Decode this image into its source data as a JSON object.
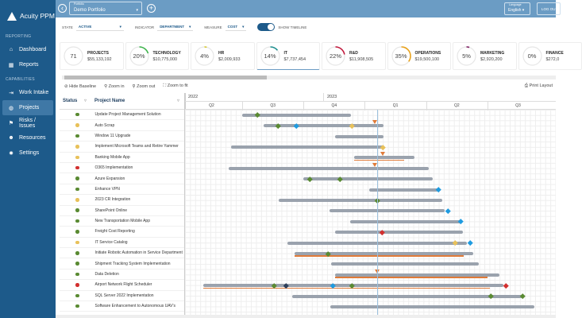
{
  "app": {
    "name": "Acuity PPM"
  },
  "sidebar": {
    "sections": [
      {
        "label": "REPORTING",
        "items": [
          {
            "label": "Dashboard",
            "icon": "home-icon"
          },
          {
            "label": "Reports",
            "icon": "grid-icon"
          }
        ]
      },
      {
        "label": "CAPABILITIES",
        "items": [
          {
            "label": "Work Intake",
            "icon": "arrow-in-icon"
          },
          {
            "label": "Projects",
            "icon": "projects-icon",
            "active": true
          },
          {
            "label": "Risks / Issues",
            "icon": "risk-icon"
          },
          {
            "label": "Resources",
            "icon": "people-icon"
          },
          {
            "label": "Settings",
            "icon": "gear-icon"
          }
        ]
      }
    ]
  },
  "topbar": {
    "portfolio_label": "Portfolio",
    "portfolio_value": "Demo Portfolio",
    "language_label": "Language",
    "language_value": "English",
    "logout": "LOG OU"
  },
  "filters": {
    "state_label": "STATE",
    "state_value": "ACTIVE",
    "indicator_label": "INDICATOR",
    "indicator_value": "DEPARTMENT",
    "measure_label": "MEASURE",
    "measure_value": "COST",
    "timeline_label": "SHOW TIMELINE",
    "timeline_on": true
  },
  "kpis": [
    {
      "title": "PROJECTS",
      "value": "$55,133,192",
      "center": "71",
      "percent": 0,
      "color": "#cccccc"
    },
    {
      "title": "TECHNOLOGY",
      "value": "$10,775,000",
      "center": "20%",
      "percent": 20,
      "color": "#3cb34a"
    },
    {
      "title": "HR",
      "value": "$2,009,933",
      "center": "4%",
      "percent": 4,
      "color": "#d4c62a"
    },
    {
      "title": "IT",
      "value": "$7,737,454",
      "center": "14%",
      "percent": 14,
      "color": "#1f8f8f",
      "selected": true
    },
    {
      "title": "R&D",
      "value": "$11,908,505",
      "center": "22%",
      "percent": 22,
      "color": "#c0163a"
    },
    {
      "title": "OPERATIONS",
      "value": "$19,500,100",
      "center": "35%",
      "percent": 35,
      "color": "#e8a21c"
    },
    {
      "title": "MARKETING",
      "value": "$2,920,200",
      "center": "5%",
      "percent": 5,
      "color": "#7a1a5e"
    },
    {
      "title": "FINANCE",
      "value": "$272,0",
      "center": "0%",
      "percent": 0,
      "color": "#cccccc"
    }
  ],
  "toolbar": {
    "hide_baseline": "Hide Baseline",
    "zoom_in": "Zoom in",
    "zoom_out": "Zoom out",
    "zoom_fit": "Zoom to fit",
    "print": "Print Layout"
  },
  "table": {
    "col_status": "Status",
    "col_name": "Project Name"
  },
  "status_colors": {
    "green": "#5a8a32",
    "yellow": "#e8c15a",
    "red": "#d2302f"
  },
  "milestone_colors": {
    "green": "#5a8a32",
    "blue": "#1e9be0",
    "yellow": "#e8c15a",
    "red": "#d2302f",
    "navy": "#2c3e5a"
  },
  "timeline": {
    "years": [
      "2022",
      "2023"
    ],
    "quarters": [
      "Q2",
      "Q3",
      "Q4",
      "Q1",
      "Q2",
      "Q3"
    ],
    "today": "2023-01-20"
  },
  "projects": [
    {
      "name": "Update Project Management Solution",
      "status": "green",
      "start": "2022-07-01",
      "end": "2022-12-12",
      "milestones": [
        [
          "2022-07-24",
          "green"
        ]
      ]
    },
    {
      "name": "Auto Scrap",
      "status": "yellow",
      "start": "2022-08-02",
      "end": "2023-01-30",
      "milestones": [
        [
          "2022-08-24",
          "green"
        ],
        [
          "2022-09-21",
          "blue"
        ],
        [
          "2022-12-13",
          "yellow"
        ]
      ],
      "markers": [
        "2023-01-17"
      ]
    },
    {
      "name": "Window 11 Upgrade",
      "status": "green",
      "start": "2022-11-18",
      "end": "2023-01-30"
    },
    {
      "name": "Implement Microsoft Teams and Retire Yammer",
      "status": "yellow",
      "start": "2022-06-14",
      "end": "2023-01-30",
      "milestones": [
        [
          "2023-01-29",
          "yellow"
        ]
      ]
    },
    {
      "name": "Banking Mobile App",
      "status": "yellow",
      "start": "2022-12-16",
      "end": "2023-03-17",
      "baseline": [
        "2022-12-16",
        "2023-03-02"
      ],
      "markers": [
        "2023-01-28"
      ]
    },
    {
      "name": "O365 Implementation",
      "status": "red",
      "start": "2022-06-11",
      "end": "2023-04-08",
      "markers": [
        "2023-01-17"
      ]
    },
    {
      "name": "Azure Expansion",
      "status": "green",
      "start": "2022-10-01",
      "end": "2023-04-14",
      "milestones": [
        [
          "2022-10-11",
          "green"
        ],
        [
          "2022-11-25",
          "green"
        ]
      ]
    },
    {
      "name": "Enhance VPN",
      "status": "green",
      "start": "2023-01-08",
      "end": "2023-04-22",
      "milestones": [
        [
          "2023-04-22",
          "blue"
        ]
      ]
    },
    {
      "name": "2023 CR Integration",
      "status": "yellow",
      "start": "2022-08-25",
      "end": "2023-04-28",
      "milestones": [
        [
          "2023-01-20",
          "green"
        ]
      ]
    },
    {
      "name": "SharePoint Online",
      "status": "green",
      "start": "2022-11-09",
      "end": "2023-05-02",
      "milestones": [
        [
          "2023-05-07",
          "blue"
        ]
      ]
    },
    {
      "name": "New Transportation Mobile App",
      "status": "green",
      "start": "2022-12-11",
      "end": "2023-05-26",
      "milestones": [
        [
          "2023-05-26",
          "blue"
        ]
      ]
    },
    {
      "name": "Freight Cost Reporting",
      "status": "green",
      "start": "2022-11-18",
      "end": "2023-05-29",
      "milestones": [
        [
          "2023-01-28",
          "red"
        ]
      ]
    },
    {
      "name": "IT Service Catalog",
      "status": "yellow",
      "start": "2022-09-07",
      "end": "2023-06-04",
      "milestones": [
        [
          "2023-05-17",
          "yellow"
        ],
        [
          "2023-06-09",
          "blue"
        ]
      ]
    },
    {
      "name": "Initiate Robotic Automation in Service Department",
      "status": "green",
      "start": "2022-09-18",
      "end": "2023-06-14",
      "baseline": [
        "2022-09-18",
        "2023-05-30"
      ],
      "milestones": [
        [
          "2022-11-07",
          "green"
        ]
      ]
    },
    {
      "name": "Shipment Tracking System Implementation",
      "status": "green",
      "start": "2022-11-12",
      "end": "2023-06-22"
    },
    {
      "name": "Data Deletion",
      "status": "green",
      "start": "2022-11-18",
      "end": "2023-07-23",
      "baseline": [
        "2022-11-18",
        "2023-07-05"
      ],
      "markers": [
        "2023-01-20"
      ]
    },
    {
      "name": "Airport Network Flight Scheduler",
      "status": "red",
      "start": "2022-05-03",
      "end": "2023-07-29",
      "baseline": [
        "2022-05-03",
        "2023-07-09"
      ],
      "milestones": [
        [
          "2022-08-18",
          "green"
        ],
        [
          "2022-09-05",
          "navy"
        ],
        [
          "2022-11-15",
          "blue"
        ],
        [
          "2022-12-13",
          "green"
        ],
        [
          "2023-08-02",
          "red"
        ]
      ]
    },
    {
      "name": "SQL Server 2022 Implementation",
      "status": "green",
      "start": "2022-09-14",
      "end": "2023-08-27",
      "milestones": [
        [
          "2023-07-10",
          "green"
        ],
        [
          "2023-08-27",
          "green"
        ]
      ]
    },
    {
      "name": "Software Enhancement to Autonomous UAV's",
      "status": "green",
      "start": "2022-11-11",
      "end": "2023-09-14"
    }
  ]
}
